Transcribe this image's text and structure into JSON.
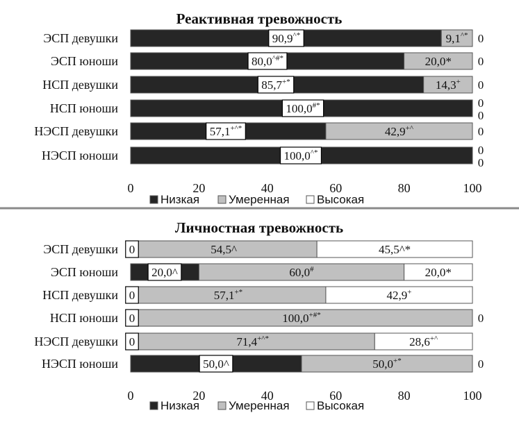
{
  "colors": {
    "low": "#262626",
    "moderate": "#c0c0c0",
    "high": "#ffffff",
    "border": "#555555",
    "divider": "#8a8a8a"
  },
  "chart_data": [
    {
      "type": "bar",
      "orientation": "horizontal",
      "stacked": true,
      "title": "Реактивная тревожность",
      "categories": [
        "ЭСП девушки",
        "ЭСП юноши",
        "НСП девушки",
        "НСП юноши",
        "НЭСП девушки",
        "НЭСП юноши"
      ],
      "xlim": [
        0,
        100
      ],
      "xticks": [
        "0",
        "20",
        "40",
        "60",
        "80",
        "100"
      ],
      "legend": [
        "Низкая",
        "Умеренная",
        "Высокая"
      ],
      "legend_position": "bottom",
      "series": [
        {
          "name": "Низкая",
          "values": [
            90.9,
            80.0,
            85.7,
            100.0,
            57.1,
            100.0
          ],
          "labels": [
            {
              "main": "90,9",
              "sup": "^*",
              "boxed": true
            },
            {
              "main": "80,0",
              "sup": "^#*",
              "boxed": true
            },
            {
              "main": "85,7",
              "sup": "+*",
              "boxed": true
            },
            {
              "main": "100,0",
              "sup": "#*",
              "boxed": true
            },
            {
              "main": "57,1",
              "sup": "+^*",
              "boxed": true
            },
            {
              "main": "100,0",
              "sup": "^*",
              "boxed": true
            }
          ]
        },
        {
          "name": "Умеренная",
          "values": [
            9.1,
            20.0,
            14.3,
            0,
            42.9,
            0
          ],
          "labels": [
            {
              "main": "9,1",
              "sup": "^*"
            },
            {
              "main": "20,0*",
              "sup": ""
            },
            {
              "main": "14,3",
              "sup": "+"
            },
            {
              "main": "0",
              "sup": "",
              "outside": true
            },
            {
              "main": "42,9",
              "sup": "+^"
            },
            {
              "main": "0",
              "sup": "",
              "outside": true
            }
          ]
        },
        {
          "name": "Высокая",
          "values": [
            0,
            0,
            0,
            0,
            0,
            0
          ],
          "labels": [
            {
              "main": "0",
              "sup": "",
              "outside": true
            },
            {
              "main": "0",
              "sup": "",
              "outside": true
            },
            {
              "main": "0",
              "sup": "",
              "outside": true
            },
            {
              "main": "0",
              "sup": "",
              "outside": true
            },
            {
              "main": "0",
              "sup": "",
              "outside": true
            },
            {
              "main": "0",
              "sup": "",
              "outside": true
            }
          ]
        }
      ]
    },
    {
      "type": "bar",
      "orientation": "horizontal",
      "stacked": true,
      "title": "Личностная тревожность",
      "categories": [
        "ЭСП девушки",
        "ЭСП юноши",
        "НСП девушки",
        "НСП юноши",
        "НЭСП девушки",
        "НЭСП юноши"
      ],
      "xlim": [
        0,
        100
      ],
      "xticks": [
        "0",
        "20",
        "40",
        "60",
        "80",
        "100"
      ],
      "legend": [
        "Низкая",
        "Умеренная",
        "Высокая"
      ],
      "legend_position": "bottom",
      "series": [
        {
          "name": "Низкая",
          "values": [
            0,
            20.0,
            0,
            0,
            0,
            50.0
          ],
          "labels": [
            {
              "main": "0",
              "sup": "",
              "boxed": true
            },
            {
              "main": "20,0^",
              "sup": "",
              "boxed": true
            },
            {
              "main": "0",
              "sup": "",
              "boxed": true
            },
            {
              "main": "0",
              "sup": "",
              "boxed": true
            },
            {
              "main": "0",
              "sup": "",
              "boxed": true
            },
            {
              "main": "50,0^",
              "sup": "",
              "boxed": true
            }
          ]
        },
        {
          "name": "Умеренная",
          "values": [
            54.5,
            60.0,
            57.1,
            100.0,
            71.4,
            50.0
          ],
          "labels": [
            {
              "main": "54,5^",
              "sup": ""
            },
            {
              "main": "60,0",
              "sup": "#"
            },
            {
              "main": "57,1",
              "sup": "+*"
            },
            {
              "main": "100,0",
              "sup": "+#*"
            },
            {
              "main": "71,4",
              "sup": "+^*"
            },
            {
              "main": "50,0",
              "sup": "+*"
            }
          ]
        },
        {
          "name": "Высокая",
          "values": [
            45.5,
            20.0,
            42.9,
            0,
            28.6,
            0
          ],
          "labels": [
            {
              "main": "45,5^*",
              "sup": ""
            },
            {
              "main": "20,0*",
              "sup": ""
            },
            {
              "main": "42,9",
              "sup": "+"
            },
            {
              "main": "0",
              "sup": "",
              "outside": true
            },
            {
              "main": "28,6",
              "sup": "+^"
            },
            {
              "main": "0",
              "sup": "",
              "outside": true
            }
          ]
        }
      ]
    }
  ]
}
